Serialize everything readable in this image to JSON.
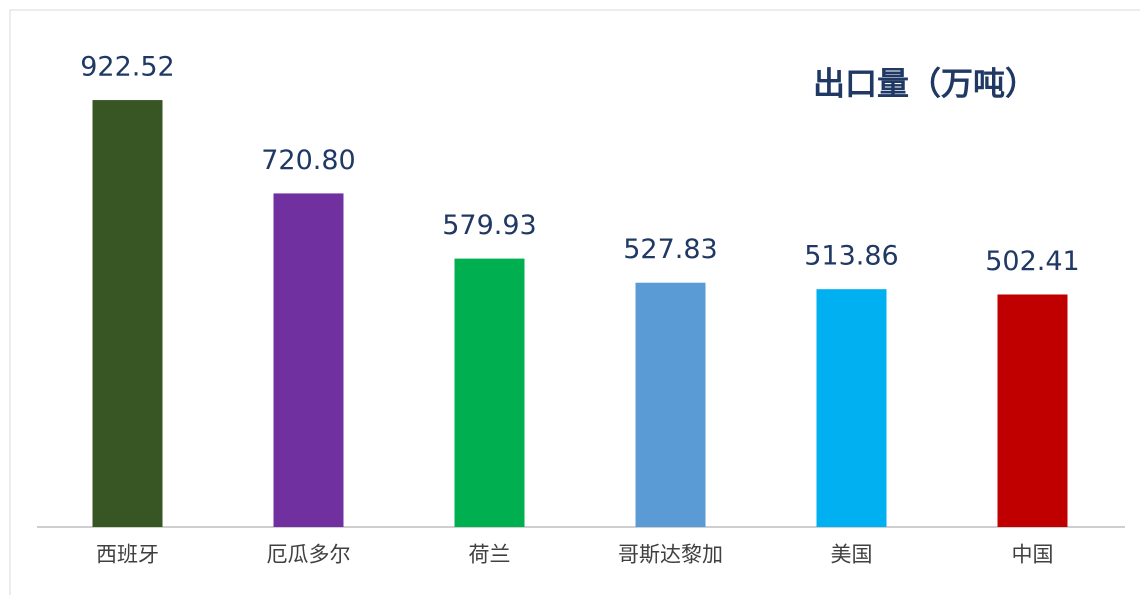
{
  "chart_data": {
    "type": "bar",
    "title": "出口量（万吨）",
    "categories": [
      "西班牙",
      "厄瓜多尔",
      "荷兰",
      "哥斯达黎加",
      "美国",
      "中国"
    ],
    "values": [
      922.52,
      720.8,
      579.93,
      527.83,
      513.86,
      502.41
    ],
    "value_labels": [
      "922.52",
      "720.80",
      "579.93",
      "527.83",
      "513.86",
      "502.41"
    ],
    "colors": [
      "#375623",
      "#7030a0",
      "#00b050",
      "#5b9bd5",
      "#00b0f0",
      "#c00000"
    ],
    "ylim": [
      0,
      1000
    ]
  }
}
